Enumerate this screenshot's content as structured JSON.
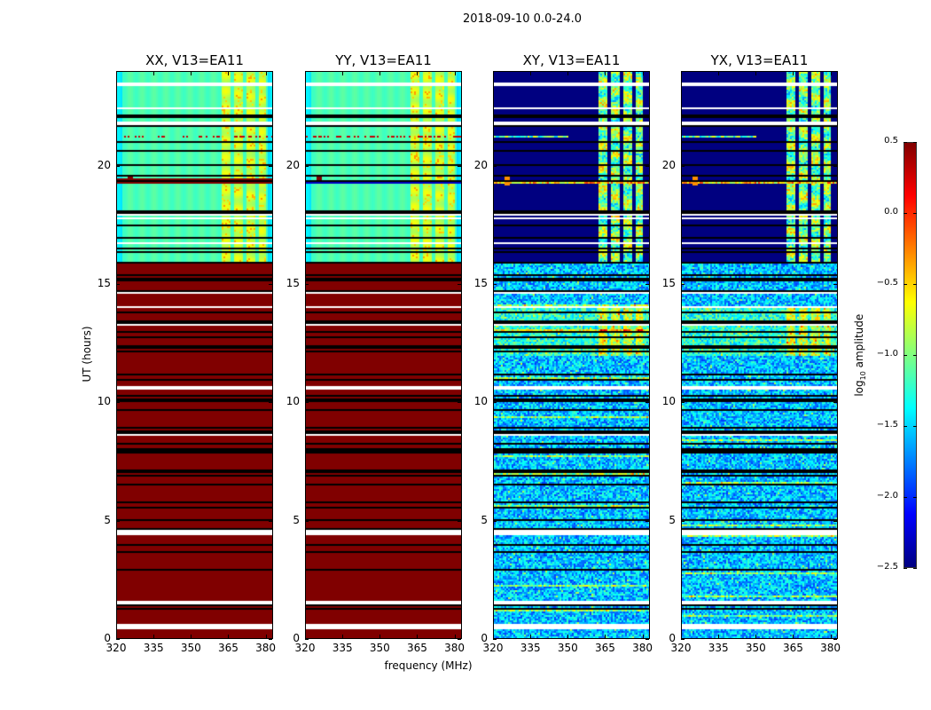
{
  "chart_data": {
    "type": "heatmap",
    "title": "2018-09-10 0.0-24.0",
    "xlabel": "frequency (MHz)",
    "ylabel": "UT (hours)",
    "xlim": [
      320,
      383
    ],
    "ylim": [
      0,
      24
    ],
    "xticks": [
      320,
      335,
      350,
      365,
      380
    ],
    "yticks": [
      0,
      5,
      10,
      15,
      20
    ],
    "colorbar": {
      "label_prefix": "log",
      "label_sub": "10",
      "label_suffix": " amplitude",
      "range": [
        -2.5,
        0.5
      ],
      "ticks": [
        "0.5",
        "0.0",
        "−0.5",
        "−1.0",
        "−1.5",
        "−2.0",
        "−2.5"
      ],
      "colormap": "jet"
    },
    "panels": [
      {
        "title": "XX, V13=EA11",
        "kind": "parallel"
      },
      {
        "title": "YY, V13=EA11",
        "kind": "parallel"
      },
      {
        "title": "XY, V13=EA11",
        "kind": "cross"
      },
      {
        "title": "YX, V13=EA11",
        "kind": "cross"
      }
    ],
    "rfi_bands_mhz": [
      [
        362,
        366
      ],
      [
        367,
        371
      ],
      [
        372,
        376
      ],
      [
        377,
        380
      ]
    ],
    "flagged_hours": [
      [
        23.45,
        23.6
      ],
      [
        22.45,
        22.5
      ],
      [
        21.75,
        21.9
      ],
      [
        17.95,
        18.05
      ],
      [
        17.8,
        17.85
      ],
      [
        16.75,
        16.82
      ],
      [
        14.6,
        14.7
      ],
      [
        14.05,
        14.1
      ],
      [
        13.3,
        13.36
      ],
      [
        10.55,
        10.75
      ],
      [
        9.95,
        10.0
      ],
      [
        9.35,
        9.4
      ],
      [
        8.6,
        8.7
      ],
      [
        4.4,
        4.65
      ],
      [
        3.55,
        3.6
      ],
      [
        1.5,
        1.6
      ],
      [
        0.45,
        0.65
      ]
    ]
  }
}
